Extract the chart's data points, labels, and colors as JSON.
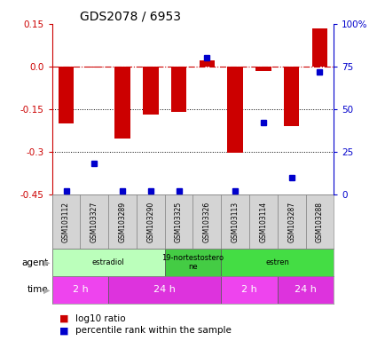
{
  "title": "GDS2078 / 6953",
  "samples": [
    "GSM103112",
    "GSM103327",
    "GSM103289",
    "GSM103290",
    "GSM103325",
    "GSM103326",
    "GSM103113",
    "GSM103114",
    "GSM103287",
    "GSM103288"
  ],
  "log10_ratio": [
    -0.2,
    -0.005,
    -0.255,
    -0.17,
    -0.16,
    0.02,
    -0.305,
    -0.015,
    -0.21,
    0.135
  ],
  "percentile_rank": [
    2,
    18,
    2,
    2,
    2,
    80,
    2,
    42,
    10,
    72
  ],
  "ylim_left": [
    -0.45,
    0.15
  ],
  "ylim_right": [
    0,
    100
  ],
  "yticks_left": [
    0.15,
    0.0,
    -0.15,
    -0.3,
    -0.45
  ],
  "yticks_right": [
    100,
    75,
    50,
    25,
    0
  ],
  "bar_color": "#cc0000",
  "dot_color": "#0000cc",
  "hline_color": "#cc0000",
  "dotline_values": [
    -0.15,
    -0.3
  ],
  "agents": [
    {
      "label": "estradiol",
      "start": 0,
      "end": 4,
      "color": "#bbffbb"
    },
    {
      "label": "19-nortestostero\nne",
      "start": 4,
      "end": 6,
      "color": "#44cc44"
    },
    {
      "label": "estren",
      "start": 6,
      "end": 10,
      "color": "#44dd44"
    }
  ],
  "times": [
    {
      "label": "2 h",
      "start": 0,
      "end": 2,
      "color": "#ee44ee"
    },
    {
      "label": "24 h",
      "start": 2,
      "end": 6,
      "color": "#dd33dd"
    },
    {
      "label": "2 h",
      "start": 6,
      "end": 8,
      "color": "#ee44ee"
    },
    {
      "label": "24 h",
      "start": 8,
      "end": 10,
      "color": "#dd33dd"
    }
  ],
  "ylabel_left_color": "#cc0000",
  "ylabel_right_color": "#0000cc",
  "background_color": "#ffffff"
}
